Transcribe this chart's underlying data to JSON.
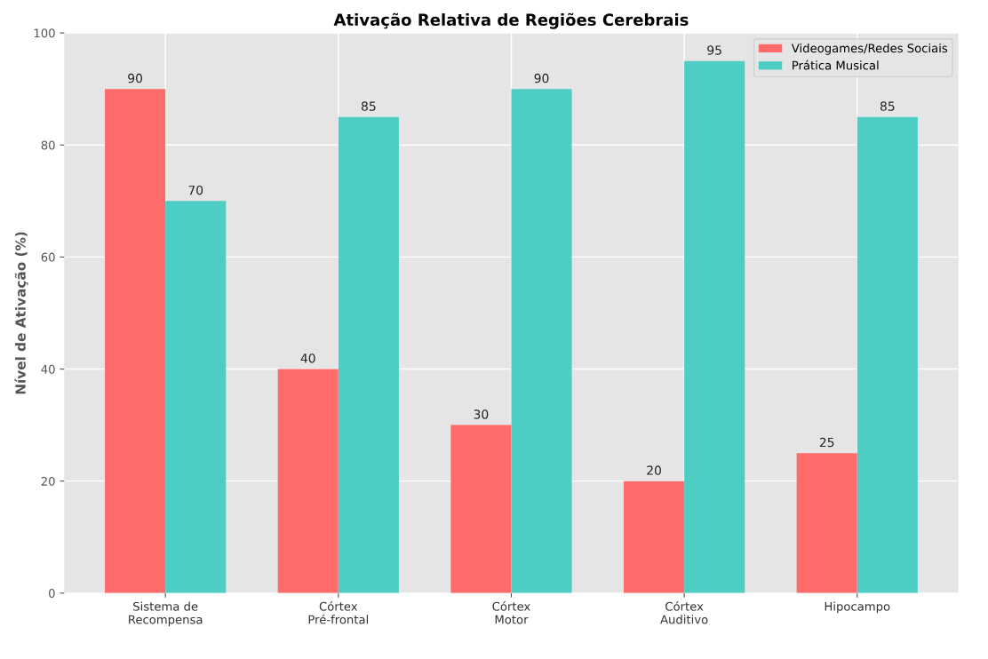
{
  "chart_data": {
    "type": "bar",
    "title": "Ativação Relativa de Regiões Cerebrais",
    "ylabel": "Nível de Ativação (%)",
    "categories": [
      "Sistema de\nRecompensa",
      "Córtex\nPré-frontal",
      "Córtex\nMotor",
      "Córtex\nAuditivo",
      "Hipocampo"
    ],
    "series": [
      {
        "name": "Videogames/Redes Sociais",
        "color": "#ff6b6b",
        "values": [
          90,
          40,
          30,
          20,
          25
        ]
      },
      {
        "name": "Prática Musical",
        "color": "#4ecdc4",
        "values": [
          70,
          85,
          90,
          95,
          85
        ]
      }
    ],
    "ylim": [
      0,
      100
    ],
    "yticks": [
      0,
      20,
      40,
      60,
      80,
      100
    ],
    "grid": true,
    "legend": "top right",
    "data_labels": true
  }
}
